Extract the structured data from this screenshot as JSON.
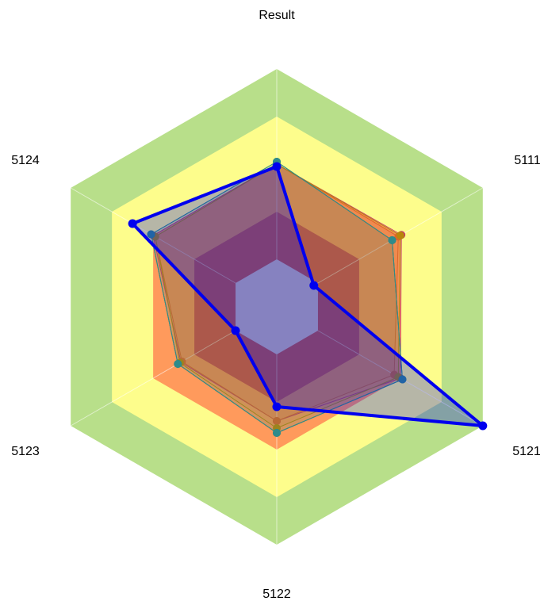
{
  "chart_data": {
    "type": "radar",
    "title": "Result",
    "axes": [
      "5111",
      "5121",
      "5122",
      "5123",
      "5124",
      "Result"
    ],
    "axis_label_positions": {
      "5111": "top-right",
      "5121": "bottom-right",
      "5122": "bottom",
      "5123": "bottom-left",
      "5124": "top-left",
      "Result": "top"
    },
    "bands": [
      {
        "from": 0.0,
        "to": 0.2,
        "color": "#e8e6f7"
      },
      {
        "from": 0.2,
        "to": 0.4,
        "color": "#ce4a4a"
      },
      {
        "from": 0.4,
        "to": 0.6,
        "color": "#ff9a5c"
      },
      {
        "from": 0.6,
        "to": 0.8,
        "color": "#fdfd8c"
      },
      {
        "from": 0.8,
        "to": 1.0,
        "color": "#b8df8a"
      }
    ],
    "range": [
      0,
      1
    ],
    "grid": true,
    "series": [
      {
        "color": "#c8396b",
        "values": [
          0.605,
          0.6,
          0.48,
          0.465,
          0.6,
          0.6
        ]
      },
      {
        "color": "#e0622c",
        "values": [
          0.59,
          0.57,
          0.48,
          0.46,
          0.59,
          0.6
        ]
      },
      {
        "color": "#b8860b",
        "values": [
          0.6,
          0.59,
          0.51,
          0.47,
          0.59,
          0.6
        ]
      },
      {
        "color": "#1a7a5a",
        "values": [
          0.56,
          0.61,
          0.53,
          0.48,
          0.61,
          0.61
        ]
      },
      {
        "color": "#2e8b8b",
        "values": [
          0.56,
          0.61,
          0.53,
          0.48,
          0.61,
          0.61
        ]
      },
      {
        "color": "#0000ee",
        "values": [
          0.18,
          1.0,
          0.42,
          0.2,
          0.7,
          0.59
        ],
        "emphasis": true
      }
    ]
  }
}
